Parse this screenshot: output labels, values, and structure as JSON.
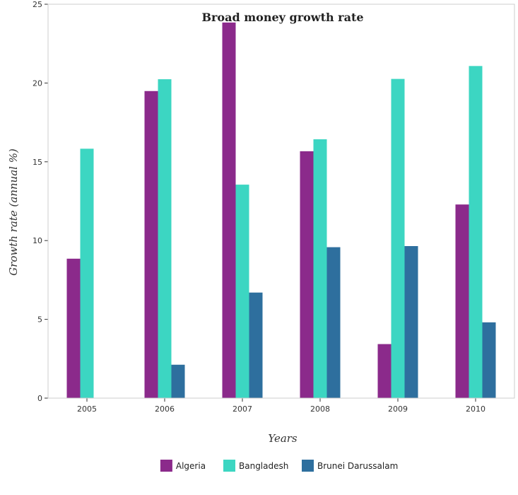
{
  "chart_data": {
    "type": "bar",
    "title": "Broad money growth rate",
    "xlabel": "Years",
    "ylabel": "Growth rate (annual %)",
    "categories": [
      "2005",
      "2006",
      "2007",
      "2008",
      "2009",
      "2010"
    ],
    "ylim": [
      0,
      25
    ],
    "yticks": [
      0,
      5,
      10,
      15,
      20,
      25
    ],
    "series": [
      {
        "name": "Algeria",
        "color": "#8b2a8b",
        "values": [
          8.85,
          19.49,
          23.84,
          15.67,
          3.43,
          12.29
        ]
      },
      {
        "name": "Bangladesh",
        "color": "#3cd6c2",
        "values": [
          15.83,
          20.24,
          13.55,
          16.43,
          20.26,
          21.08
        ]
      },
      {
        "name": "Brunei Darussalam",
        "color": "#2e6f9e",
        "values": [
          0,
          2.12,
          6.7,
          9.58,
          9.65,
          4.81
        ]
      }
    ],
    "legend_position": "bottom-center",
    "grid": false
  }
}
